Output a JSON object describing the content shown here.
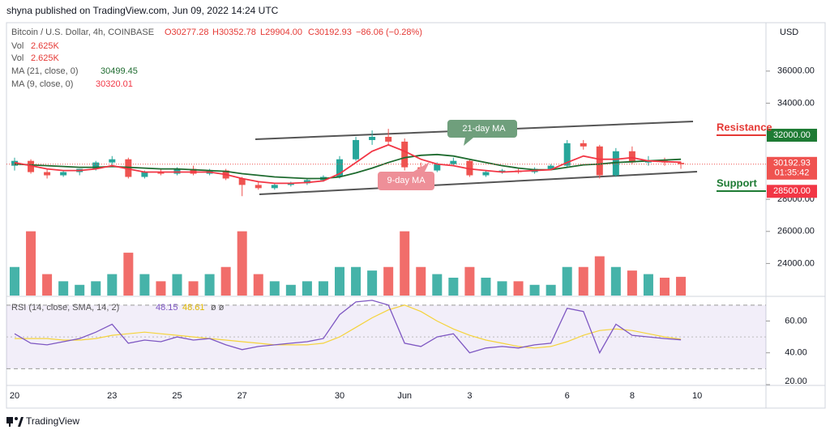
{
  "header": {
    "byline": "shyna published on TradingView.com, Jun 09, 2022 14:24 UTC"
  },
  "footer": {
    "brand": "TradingView"
  },
  "chart_data": {
    "type": "candlestick",
    "title": "Bitcoin / U.S. Dollar, 4h, COINBASE",
    "ohlc_labels": [
      "O30277.28",
      "H30352.78",
      "L29904.00",
      "C30192.93",
      "−86.06 (−0.28%)"
    ],
    "currency": "USD",
    "categories": [
      "20",
      null,
      null,
      null,
      null,
      null,
      "23",
      null,
      null,
      null,
      "25",
      null,
      null,
      null,
      "27",
      null,
      null,
      null,
      null,
      null,
      "30",
      null,
      null,
      null,
      "Jun",
      null,
      null,
      null,
      "3",
      null,
      null,
      null,
      null,
      null,
      "6",
      null,
      null,
      null,
      "8",
      null,
      null,
      null,
      "10"
    ],
    "open": [
      30100,
      30400,
      29700,
      29500,
      29700,
      29900,
      30300,
      30500,
      29400,
      29700,
      29600,
      29900,
      29600,
      29800,
      29300,
      28900,
      28700,
      28900,
      29000,
      29200,
      29400,
      30500,
      31700,
      31900,
      31600,
      30000,
      29800,
      30200,
      30400,
      29500,
      29700,
      29800,
      29700,
      29900,
      30100,
      31500,
      31300,
      29500,
      31000,
      30300,
      30400,
      30277.28,
      null
    ],
    "high": [
      30600,
      30500,
      29900,
      29800,
      29900,
      30400,
      30700,
      30600,
      29800,
      29900,
      30000,
      30100,
      29900,
      29900,
      29400,
      29100,
      29000,
      29100,
      29300,
      29500,
      30700,
      31900,
      32300,
      32400,
      31800,
      30300,
      30300,
      30600,
      30500,
      29800,
      29900,
      29900,
      30000,
      30200,
      31700,
      31700,
      31400,
      31200,
      31300,
      30700,
      30600,
      30352.78,
      null
    ],
    "low": [
      29800,
      29600,
      29300,
      29400,
      29500,
      29800,
      30100,
      29300,
      29300,
      29500,
      29500,
      29500,
      29500,
      29200,
      28200,
      28600,
      28600,
      28800,
      28900,
      29100,
      29300,
      30400,
      31400,
      31400,
      29800,
      29600,
      29700,
      30100,
      29400,
      29400,
      29600,
      29600,
      29600,
      29800,
      30000,
      31100,
      29300,
      29400,
      30200,
      30100,
      30100,
      29904,
      null
    ],
    "close": [
      30400,
      29700,
      29500,
      29700,
      29900,
      30300,
      30500,
      29400,
      29700,
      29600,
      29900,
      29600,
      29800,
      29300,
      28900,
      28700,
      28900,
      29000,
      29200,
      29400,
      30500,
      31700,
      31900,
      31600,
      30000,
      29800,
      30200,
      30400,
      29500,
      29700,
      29800,
      29700,
      29900,
      30100,
      31500,
      31300,
      29500,
      31000,
      30300,
      30400,
      30300,
      30192.93,
      null
    ],
    "up_color": "#26a69a",
    "down_color": "#ef5350",
    "ylim": [
      22000,
      38920
    ],
    "yticks": [
      {
        "value": 36000,
        "label": "36000.00"
      },
      {
        "value": 34000,
        "label": "34000.00"
      },
      {
        "value": 28000,
        "label": "28000.00"
      },
      {
        "value": 26000,
        "label": "26000.00"
      },
      {
        "value": 24000,
        "label": "24000.00"
      }
    ],
    "series": [
      {
        "name": "MA (21, close, 0)",
        "color": "#1e6b2f",
        "values": [
          30200,
          30150,
          30100,
          30050,
          30000,
          30000,
          30050,
          30000,
          29950,
          29900,
          29900,
          29850,
          29800,
          29750,
          29600,
          29500,
          29400,
          29350,
          29300,
          29300,
          29400,
          29650,
          29950,
          30300,
          30600,
          30750,
          30800,
          30700,
          30500,
          30300,
          30100,
          29950,
          29850,
          29850,
          30000,
          30150,
          30200,
          30300,
          30350,
          30400,
          30450,
          30499.45,
          null
        ]
      },
      {
        "name": "MA (9, close, 0)",
        "color": "#f23645",
        "values": [
          30300,
          30100,
          29900,
          29800,
          29800,
          29900,
          30100,
          29900,
          29700,
          29700,
          29700,
          29700,
          29700,
          29550,
          29300,
          29100,
          29000,
          29000,
          29050,
          29150,
          29600,
          30300,
          31000,
          31400,
          31000,
          30500,
          30200,
          30100,
          29900,
          29800,
          29700,
          29750,
          29800,
          29850,
          30300,
          30700,
          30500,
          30500,
          30600,
          30400,
          30350,
          30320.01,
          null
        ]
      }
    ],
    "volume": {
      "name": "Vol",
      "value_label": "2.625K",
      "ylim": [
        0,
        38
      ],
      "values": [
        4,
        9,
        3,
        2,
        1.5,
        2,
        3,
        6,
        3,
        2,
        3,
        2,
        3,
        4,
        9,
        3,
        2,
        1.5,
        2,
        2,
        4,
        4,
        3.5,
        4,
        9,
        4,
        3,
        2.5,
        4,
        2.5,
        2,
        2,
        1.5,
        1.5,
        4,
        4,
        5.5,
        4,
        3.5,
        3,
        2.5,
        2.625,
        null
      ]
    },
    "price_labels": [
      {
        "value": 32000,
        "label": "32000.00",
        "color": "#1e7b34"
      },
      {
        "value": 28500,
        "label": "28500.00",
        "color": "#f23645"
      }
    ],
    "countdown": "01:35:42",
    "annotations": {
      "ma21": "21-day MA",
      "ma9": "9-day MA",
      "resistance": "Resistance",
      "support": "Support"
    },
    "rsi": {
      "name": "RSI (14, close, SMA, 14, 2)",
      "extra": "ø ø",
      "color": "#7e57c2",
      "sma_color": "#f5d33a",
      "ylim": [
        20,
        75
      ],
      "yticks": [
        {
          "value": 60,
          "label": "60.00"
        },
        {
          "value": 40,
          "label": "40.00"
        },
        {
          "value": 20,
          "label": "20.00"
        }
      ],
      "band": [
        30,
        70
      ],
      "midline": 50,
      "values": [
        52,
        46,
        45,
        47,
        49,
        53,
        58,
        46,
        48,
        47,
        50,
        48,
        49,
        45,
        42,
        44,
        45,
        46,
        47,
        49,
        64,
        72,
        73,
        70,
        46,
        44,
        50,
        52,
        40,
        43,
        44,
        43,
        45,
        46,
        68,
        66,
        40,
        58,
        51,
        50,
        49,
        48.15,
        null
      ],
      "sma": [
        49,
        49,
        49,
        48,
        48,
        49,
        51,
        52,
        53,
        52,
        51,
        50,
        49,
        48,
        47,
        46,
        45,
        45,
        45,
        46,
        50,
        56,
        62,
        67,
        70,
        66,
        60,
        55,
        51,
        48,
        46,
        44,
        43,
        44,
        47,
        51,
        54,
        55,
        54,
        52,
        50,
        48.61,
        null
      ]
    }
  }
}
